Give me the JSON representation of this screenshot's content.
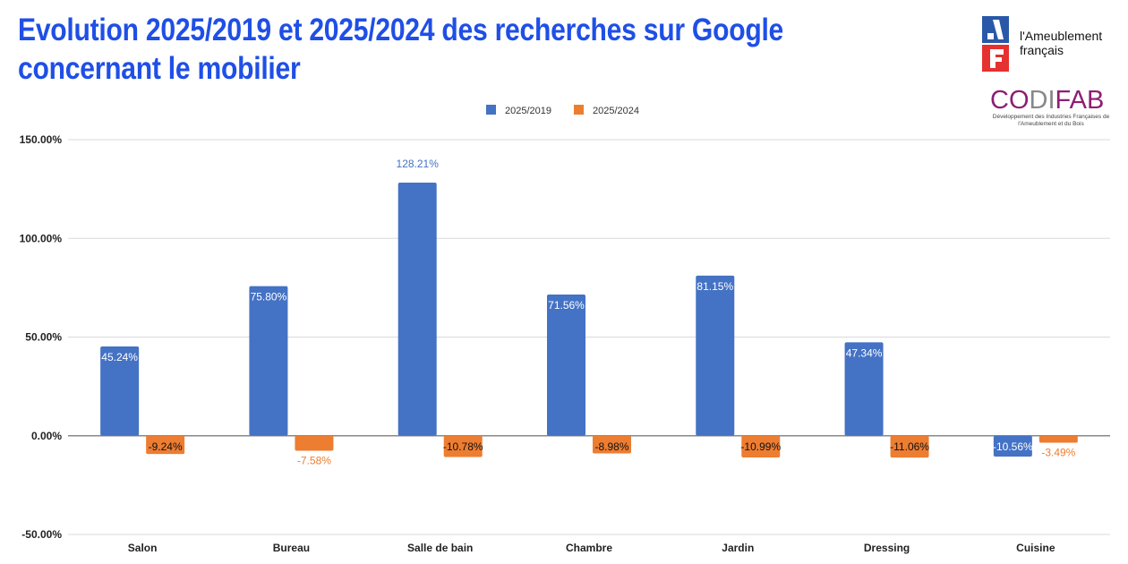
{
  "title_line1": "Evolution 2025/2019 et 2025/2024 des recherches sur Google",
  "title_line2": "concernant le mobilier",
  "logos": {
    "af_name_line1": "l'Ameublement",
    "af_name_line2": "français",
    "codifab_prefix": "CO",
    "codifab_mid": "DI",
    "codifab_suffix": "FAB",
    "codifab_tagline": "Développement des Industries Françaises de l'Ameublement et du Bois"
  },
  "colors": {
    "series1": "#4472c4",
    "series2": "#ed7d31",
    "title": "#1f4fe6"
  },
  "chart_data": {
    "type": "bar",
    "title": "Evolution 2025/2019 et 2025/2024 des recherches sur Google concernant le mobilier",
    "xlabel": "",
    "ylabel": "",
    "ylim": [
      -50,
      150
    ],
    "yticks": [
      150,
      100,
      50,
      0,
      -50
    ],
    "ytick_labels": [
      "150.00%",
      "100.00%",
      "50.00%",
      "0.00%",
      "-50.00%"
    ],
    "grid": true,
    "legend": "top-center",
    "categories": [
      "Salon",
      "Bureau",
      "Salle de bain",
      "Chambre",
      "Jardin",
      "Dressing",
      "Cuisine"
    ],
    "series": [
      {
        "name": "2025/2019",
        "values": [
          45.24,
          75.8,
          128.21,
          71.56,
          81.15,
          47.34,
          -10.56
        ],
        "labels": [
          "45.24%",
          "75.80%",
          "128.21%",
          "71.56%",
          "81.15%",
          "47.34%",
          "-10.56%"
        ],
        "label_pos": [
          "inside",
          "inside",
          "outside",
          "inside",
          "inside",
          "inside",
          "inside"
        ]
      },
      {
        "name": "2025/2024",
        "values": [
          -9.24,
          -7.58,
          -10.78,
          -8.98,
          -10.99,
          -11.06,
          -3.49
        ],
        "labels": [
          "-9.24%",
          "-7.58%",
          "-10.78%",
          "-8.98%",
          "-10.99%",
          "-11.06%",
          "-3.49%"
        ],
        "label_pos": [
          "inside",
          "outside",
          "inside",
          "inside",
          "inside",
          "inside",
          "outside"
        ]
      }
    ]
  }
}
